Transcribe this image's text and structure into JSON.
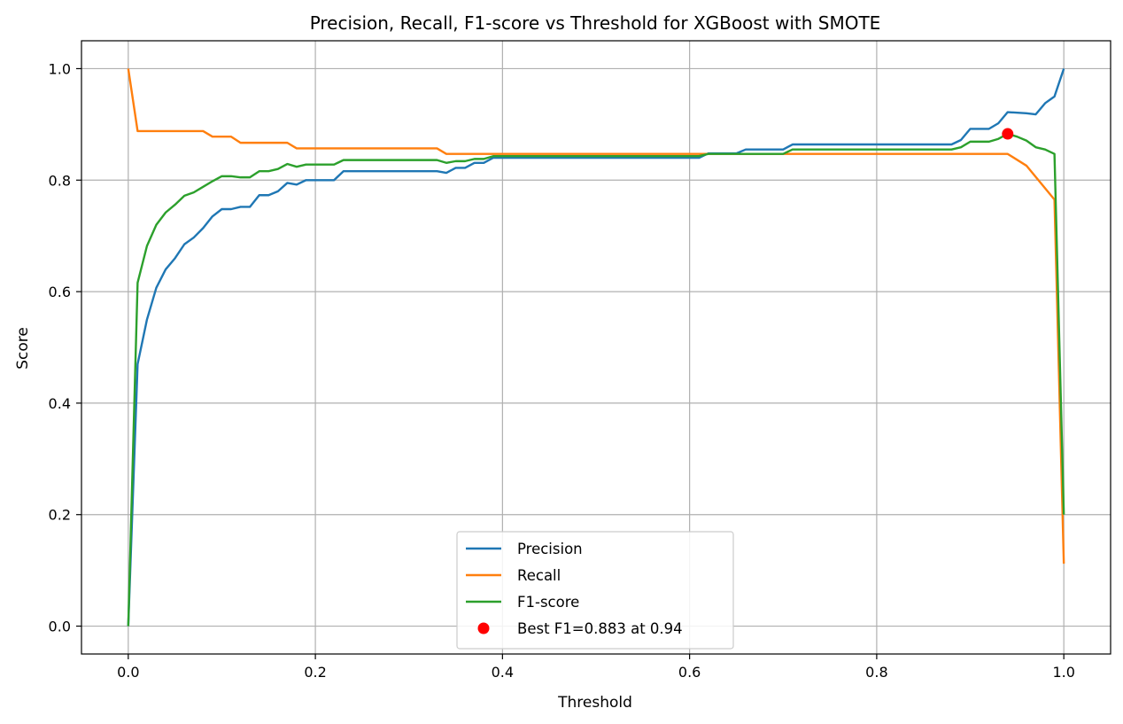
{
  "chart_data": {
    "type": "line",
    "title": "Precision, Recall, F1-score vs Threshold for XGBoost with SMOTE",
    "xlabel": "Threshold",
    "ylabel": "Score",
    "xlim": [
      -0.05,
      1.05
    ],
    "ylim": [
      -0.05,
      1.05
    ],
    "xticks": [
      0.0,
      0.2,
      0.4,
      0.6,
      0.8,
      1.0
    ],
    "xtick_labels": [
      "0.0",
      "0.2",
      "0.4",
      "0.6",
      "0.8",
      "1.0"
    ],
    "yticks": [
      0.0,
      0.2,
      0.4,
      0.6,
      0.8,
      1.0
    ],
    "ytick_labels": [
      "0.0",
      "0.2",
      "0.4",
      "0.6",
      "0.8",
      "1.0"
    ],
    "grid": true,
    "legend_position": "bottom-center",
    "series": [
      {
        "name": "Precision",
        "color": "#1f77b4",
        "x": [
          0.0,
          0.01,
          0.02,
          0.03,
          0.04,
          0.05,
          0.06,
          0.07,
          0.08,
          0.09,
          0.1,
          0.11,
          0.12,
          0.13,
          0.14,
          0.15,
          0.16,
          0.17,
          0.18,
          0.19,
          0.2,
          0.21,
          0.22,
          0.23,
          0.24,
          0.3,
          0.33,
          0.34,
          0.35,
          0.36,
          0.37,
          0.38,
          0.39,
          0.4,
          0.5,
          0.6,
          0.61,
          0.62,
          0.65,
          0.66,
          0.7,
          0.71,
          0.8,
          0.88,
          0.89,
          0.9,
          0.92,
          0.93,
          0.94,
          0.96,
          0.97,
          0.98,
          0.99,
          1.0
        ],
        "y": [
          0.0,
          0.47,
          0.55,
          0.607,
          0.64,
          0.66,
          0.685,
          0.697,
          0.714,
          0.735,
          0.748,
          0.748,
          0.752,
          0.752,
          0.773,
          0.773,
          0.78,
          0.795,
          0.792,
          0.8,
          0.8,
          0.8,
          0.8,
          0.816,
          0.816,
          0.816,
          0.816,
          0.813,
          0.822,
          0.822,
          0.831,
          0.831,
          0.84,
          0.84,
          0.84,
          0.84,
          0.84,
          0.848,
          0.848,
          0.855,
          0.855,
          0.864,
          0.864,
          0.864,
          0.872,
          0.892,
          0.892,
          0.902,
          0.922,
          0.92,
          0.918,
          0.938,
          0.95,
          1.0
        ]
      },
      {
        "name": "Recall",
        "color": "#ff7f0e",
        "x": [
          0.0,
          0.01,
          0.08,
          0.09,
          0.11,
          0.12,
          0.17,
          0.18,
          0.33,
          0.34,
          0.7,
          0.94,
          0.96,
          0.99,
          1.0
        ],
        "y": [
          1.0,
          0.888,
          0.888,
          0.878,
          0.878,
          0.867,
          0.867,
          0.857,
          0.857,
          0.847,
          0.847,
          0.847,
          0.826,
          0.765,
          0.112
        ]
      },
      {
        "name": "F1-score",
        "color": "#2ca02c",
        "x": [
          0.0,
          0.01,
          0.02,
          0.03,
          0.04,
          0.05,
          0.06,
          0.07,
          0.08,
          0.09,
          0.1,
          0.11,
          0.12,
          0.13,
          0.14,
          0.15,
          0.16,
          0.17,
          0.18,
          0.19,
          0.2,
          0.21,
          0.22,
          0.23,
          0.3,
          0.33,
          0.34,
          0.35,
          0.36,
          0.37,
          0.38,
          0.39,
          0.4,
          0.6,
          0.61,
          0.62,
          0.7,
          0.71,
          0.88,
          0.89,
          0.9,
          0.92,
          0.93,
          0.94,
          0.95,
          0.96,
          0.97,
          0.98,
          0.99,
          1.0
        ],
        "y": [
          0.0,
          0.616,
          0.682,
          0.72,
          0.742,
          0.756,
          0.772,
          0.778,
          0.788,
          0.798,
          0.807,
          0.807,
          0.805,
          0.805,
          0.816,
          0.816,
          0.82,
          0.829,
          0.824,
          0.828,
          0.828,
          0.828,
          0.828,
          0.836,
          0.836,
          0.836,
          0.831,
          0.834,
          0.834,
          0.838,
          0.838,
          0.843,
          0.843,
          0.843,
          0.843,
          0.847,
          0.847,
          0.855,
          0.855,
          0.859,
          0.869,
          0.869,
          0.874,
          0.883,
          0.878,
          0.871,
          0.859,
          0.855,
          0.847,
          0.2
        ]
      }
    ],
    "points": [
      {
        "name": "Best F1=0.883 at 0.94",
        "color": "#ff0000",
        "x": 0.94,
        "y": 0.883
      }
    ]
  }
}
